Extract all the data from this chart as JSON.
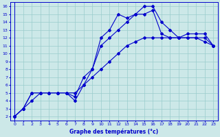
{
  "xlabel": "Graphe des températures (°c)",
  "xlim": [
    -0.5,
    23.5
  ],
  "ylim": [
    1.5,
    16.5
  ],
  "xticks": [
    0,
    1,
    2,
    3,
    4,
    5,
    6,
    7,
    8,
    9,
    10,
    11,
    12,
    13,
    14,
    15,
    16,
    17,
    18,
    19,
    20,
    21,
    22,
    23
  ],
  "yticks": [
    2,
    3,
    4,
    5,
    6,
    7,
    8,
    9,
    10,
    11,
    12,
    13,
    14,
    15,
    16
  ],
  "bg_color": "#cce8e8",
  "grid_color": "#99cccc",
  "line_color": "#0000cc",
  "marker": "D",
  "markersize": 2.0,
  "linewidth": 0.8,
  "curves": [
    [
      2,
      3,
      5,
      5,
      5,
      5,
      5,
      4,
      6,
      8,
      12,
      13,
      15,
      14.5,
      15,
      16,
      16,
      14,
      13,
      12,
      12,
      12,
      12,
      11
    ],
    [
      2,
      3,
      5,
      5,
      5,
      5,
      5,
      4.5,
      7,
      8,
      11,
      12,
      13,
      14,
      15,
      15,
      15.5,
      12.5,
      12,
      12,
      12.5,
      12.5,
      12.5,
      11
    ],
    [
      2,
      3,
      4,
      5,
      5,
      5,
      5,
      5,
      6,
      7,
      8,
      9,
      10,
      11,
      11.5,
      12,
      12,
      12,
      12,
      12,
      12,
      12,
      11.5,
      11
    ]
  ]
}
